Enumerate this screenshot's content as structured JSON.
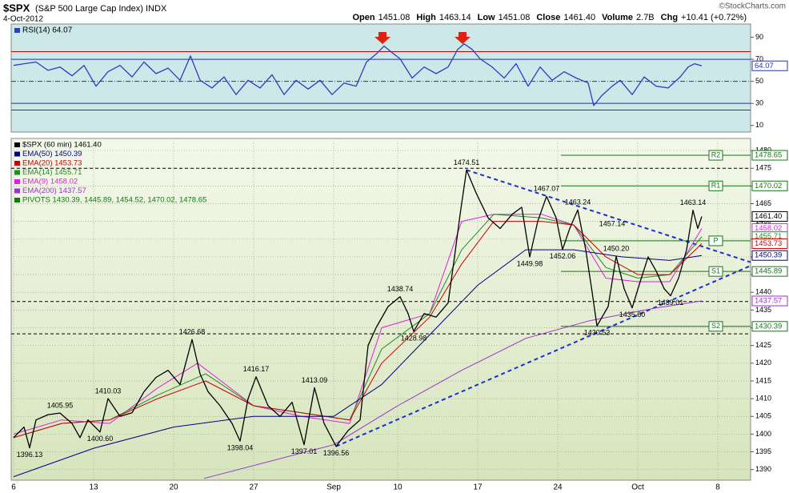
{
  "header": {
    "symbol": "$SPX",
    "name": "(S&P 500 Large Cap Index) INDX",
    "date": "4-Oct-2012",
    "credit": "©StockCharts.com",
    "quote": [
      {
        "label": "Open",
        "value": "1451.08"
      },
      {
        "label": "High",
        "value": "1463.14"
      },
      {
        "label": "Low",
        "value": "1451.08"
      },
      {
        "label": "Close",
        "value": "1461.40"
      },
      {
        "label": "Volume",
        "value": "2.7B"
      },
      {
        "label": "Chg",
        "value": "+10.41 (+0.72%)"
      }
    ]
  },
  "chart_data": [
    {
      "type": "line",
      "title": "RSI(14) 64.07",
      "xlim": [
        -0.15,
        46.05
      ],
      "ylim": [
        4,
        102
      ],
      "yticks": [
        10,
        30,
        50,
        70,
        90
      ],
      "grid": false,
      "reference_lines": [
        {
          "value": 77,
          "color": "#cc0000"
        },
        {
          "value": 70,
          "color": "#2233aa"
        },
        {
          "value": 50,
          "color": "#2233aa",
          "dash": true
        },
        {
          "value": 30,
          "color": "#2233aa"
        },
        {
          "value": 24,
          "color": "#cc0000"
        }
      ],
      "flags": [
        {
          "value": 64.07,
          "label": "64.07",
          "color": "#2233aa"
        }
      ],
      "series": [
        {
          "name": "RSI(14)",
          "color": "#2a3fbf",
          "x": [
            0,
            0.65,
            1.4,
            2.15,
            2.9,
            3.65,
            4.4,
            5.15,
            5.9,
            6.65,
            7.4,
            8.15,
            8.9,
            9.65,
            10.4,
            11.05,
            11.65,
            12.4,
            13.15,
            13.9,
            14.65,
            15.4,
            16.15,
            16.9,
            17.65,
            18.4,
            19.15,
            19.9,
            20.65,
            21.4,
            22.05,
            22.65,
            23.15,
            23.65,
            24.15,
            24.9,
            25.65,
            26.4,
            27.15,
            27.75,
            28.15,
            28.65,
            29.15,
            29.9,
            30.65,
            31.4,
            32.15,
            32.9,
            33.65,
            34.4,
            35.15,
            35.9,
            36.25,
            36.75,
            37.4,
            37.9,
            38.65,
            39.4,
            40.15,
            40.9,
            41.65,
            42.15,
            42.55,
            43
          ],
          "values": [
            64.5,
            66,
            67.5,
            60,
            63,
            55,
            64.5,
            45.6,
            58.7,
            64.5,
            54,
            67.5,
            57,
            62,
            51,
            73,
            51,
            44,
            54,
            38,
            51,
            44,
            56,
            38,
            51,
            43,
            51,
            38,
            48.5,
            45.6,
            67.5,
            74.7,
            82,
            76,
            70.4,
            53,
            63,
            57,
            63,
            79,
            84,
            79,
            70.4,
            63,
            53,
            66,
            45.6,
            63,
            51,
            58.7,
            53,
            48.5,
            28,
            37,
            45.6,
            51,
            38,
            54,
            45.6,
            44,
            54,
            63,
            66,
            64.07
          ]
        }
      ]
    },
    {
      "type": "line",
      "xlim": [
        -0.15,
        46.05
      ],
      "ylim": [
        1387,
        1483.4
      ],
      "xticks": [
        {
          "value": 0,
          "label": "6"
        },
        {
          "value": 5,
          "label": "13"
        },
        {
          "value": 10,
          "label": "20"
        },
        {
          "value": 15,
          "label": "27"
        },
        {
          "value": 20,
          "label": "Sep"
        },
        {
          "value": 24,
          "label": "10"
        },
        {
          "value": 29,
          "label": "17"
        },
        {
          "value": 34,
          "label": "24"
        },
        {
          "value": 39,
          "label": "Oct"
        },
        {
          "value": 44,
          "label": "8"
        }
      ],
      "yticks": [
        1390,
        1395,
        1400,
        1405,
        1410,
        1415,
        1420,
        1425,
        1430,
        1435,
        1440,
        1445,
        1450,
        1455,
        1460,
        1465,
        1470,
        1475,
        1480
      ],
      "grid": true,
      "series": [
        {
          "name": "$SPX (60 min) 1461.40",
          "color": "#000000",
          "x": [
            0,
            0.65,
            1,
            1.4,
            2.15,
            2.9,
            3.65,
            4.15,
            4.65,
            5.4,
            5.9,
            6.65,
            7.4,
            8.15,
            8.9,
            9.65,
            10.4,
            11.15,
            11.65,
            12.15,
            12.9,
            13.65,
            14.15,
            14.65,
            15.15,
            15.9,
            16.65,
            17.4,
            18.15,
            18.8,
            19.4,
            20.15,
            20.9,
            21.65,
            22.15,
            22.65,
            23.4,
            24.15,
            24.65,
            25,
            25.65,
            26.4,
            27.15,
            27.55,
            27.9,
            28.3,
            28.9,
            29.65,
            30.4,
            31.15,
            31.75,
            32.25,
            32.75,
            33.3,
            33.9,
            34.3,
            34.75,
            35.25,
            35.75,
            36.15,
            36.45,
            37.15,
            37.65,
            38.15,
            38.65,
            39.15,
            39.65,
            40.15,
            40.65,
            41.05,
            41.55,
            42.05,
            42.45,
            42.75,
            43
          ],
          "values": [
            1399,
            1402,
            1396.13,
            1404,
            1405.5,
            1405.95,
            1403,
            1399,
            1404,
            1400.6,
            1410.03,
            1405,
            1406,
            1412,
            1416,
            1418,
            1414,
            1426.68,
            1417,
            1412,
            1408,
            1403,
            1398.04,
            1410,
            1416.17,
            1408,
            1405,
            1409,
            1397.01,
            1413.09,
            1403,
            1396.56,
            1401,
            1404,
            1425,
            1430,
            1436,
            1438.74,
            1434,
            1428.98,
            1434,
            1433,
            1437,
            1450,
            1462,
            1474.51,
            1468,
            1461,
            1458,
            1462,
            1464,
            1449.98,
            1460,
            1467.07,
            1461,
            1452.06,
            1458,
            1463.24,
            1452,
            1440,
            1430.53,
            1436,
            1450.2,
            1441,
            1435.6,
            1443,
            1450,
            1446,
            1441,
            1439.01,
            1444,
            1452,
            1463.14,
            1458,
            1461.4
          ]
        },
        {
          "name": "EMA(50) 1450.39",
          "color": "#000080",
          "x": [
            0,
            5,
            10,
            15,
            20,
            23,
            26,
            29,
            32,
            35,
            38,
            41,
            43
          ],
          "values": [
            1388,
            1396,
            1402,
            1405,
            1405,
            1414,
            1428,
            1442,
            1452,
            1452,
            1450,
            1449,
            1450.39
          ]
        },
        {
          "name": "EMA(20) 1453.73",
          "color": "#cc0000",
          "x": [
            0,
            3,
            6,
            9,
            12,
            15,
            18,
            21,
            23,
            26,
            28,
            30,
            33,
            35,
            37,
            39,
            41,
            43
          ],
          "values": [
            1399,
            1403,
            1404,
            1410,
            1415,
            1408,
            1406,
            1404,
            1420,
            1433,
            1448,
            1460,
            1460,
            1459,
            1450,
            1445,
            1445,
            1453.73
          ]
        },
        {
          "name": "EMA(14) 1455.71",
          "color": "#228b22",
          "x": [
            0,
            3,
            6,
            9,
            12,
            15,
            18,
            21,
            23,
            26,
            28,
            30,
            33,
            35,
            37,
            39,
            41,
            43
          ],
          "values": [
            1399,
            1403,
            1404,
            1411,
            1417,
            1408,
            1406,
            1404,
            1424,
            1434,
            1452,
            1462,
            1461,
            1459,
            1447,
            1444,
            1445,
            1455.71
          ]
        },
        {
          "name": "EMA(9) 1458.02",
          "color": "#e020e0",
          "x": [
            0,
            3,
            6,
            9,
            11.5,
            15,
            18,
            21,
            23,
            26,
            28,
            30,
            33,
            35,
            37,
            39,
            41,
            43
          ],
          "values": [
            1400,
            1404,
            1403,
            1413,
            1420,
            1408,
            1405,
            1403,
            1430,
            1434,
            1460,
            1462,
            1462,
            1459,
            1444,
            1443,
            1443,
            1458.02
          ]
        },
        {
          "name": "EMA(200) 1437.57",
          "color": "#9933cc",
          "x": [
            11.9,
            20,
            24,
            28,
            32,
            36,
            40,
            43
          ],
          "values": [
            1387.5,
            1397,
            1408,
            1418,
            1427,
            1432,
            1435.5,
            1437.57
          ]
        }
      ],
      "pivots_legend": "PIVOTS 1430.39, 1445.89, 1454.52, 1470.02, 1478.65",
      "pivots_color": "#117711",
      "pivots": [
        {
          "name": "R2",
          "value": 1478.65
        },
        {
          "name": "R1",
          "value": 1470.02
        },
        {
          "name": "P",
          "value": 1454.52
        },
        {
          "name": "S1",
          "value": 1445.89
        },
        {
          "name": "S2",
          "value": 1430.39
        }
      ],
      "pivot_range": [
        34.2,
        46.05
      ],
      "horizontal_lines": [
        1475,
        1437.4,
        1428.3
      ],
      "trendlines": [
        {
          "x": [
            20.15,
            46.05
          ],
          "values": [
            1396.56,
            1447.5
          ]
        },
        {
          "x": [
            28.3,
            46.05
          ],
          "values": [
            1474.51,
            1448.5
          ]
        }
      ],
      "trendline_color": "#1a2fd0",
      "annotations": [
        {
          "x": 1,
          "value": 1396.13,
          "side": "below"
        },
        {
          "x": 2.9,
          "value": 1405.95,
          "side": "above"
        },
        {
          "x": 5.4,
          "value": 1400.6,
          "label": "1400.60",
          "side": "below"
        },
        {
          "x": 5.9,
          "value": 1410.03,
          "side": "above"
        },
        {
          "x": 11.15,
          "value": 1426.68,
          "side": "above"
        },
        {
          "x": 14.15,
          "value": 1398.04,
          "side": "below"
        },
        {
          "x": 15.15,
          "value": 1416.17,
          "side": "above"
        },
        {
          "x": 18.15,
          "value": 1397.01,
          "side": "below"
        },
        {
          "x": 18.8,
          "value": 1413.09,
          "side": "above"
        },
        {
          "x": 20.15,
          "value": 1396.56,
          "side": "below"
        },
        {
          "x": 24.15,
          "value": 1438.74,
          "side": "above"
        },
        {
          "x": 25,
          "value": 1428.98,
          "side": "below"
        },
        {
          "x": 28.3,
          "value": 1474.51,
          "side": "above"
        },
        {
          "x": 32.25,
          "value": 1449.98,
          "side": "below"
        },
        {
          "x": 33.3,
          "value": 1467.07,
          "side": "above"
        },
        {
          "x": 34.3,
          "value": 1452.06,
          "side": "below"
        },
        {
          "x": 35.25,
          "value": 1463.24,
          "side": "above"
        },
        {
          "x": 37.4,
          "value": 1457.14,
          "side": "above"
        },
        {
          "x": 37.65,
          "value": 1450.2,
          "label": "1450.20",
          "side": "above"
        },
        {
          "x": 36.45,
          "value": 1430.53,
          "side": "below"
        },
        {
          "x": 38.65,
          "value": 1435.6,
          "label": "1435.60",
          "side": "below"
        },
        {
          "x": 41.05,
          "value": 1439.01,
          "side": "below"
        },
        {
          "x": 42.45,
          "value": 1463.14,
          "side": "above"
        }
      ],
      "flags": [
        {
          "value": 1478.65,
          "label": "1478.65",
          "color": "#117711"
        },
        {
          "value": 1470.02,
          "label": "1470.02",
          "color": "#117711"
        },
        {
          "value": 1461.4,
          "label": "1461.40",
          "color": "#000000"
        },
        {
          "value": 1458.02,
          "label": "1458.02",
          "color": "#e020e0"
        },
        {
          "value": 1455.71,
          "label": "1455.71",
          "color": "#228b22"
        },
        {
          "value": 1453.73,
          "label": "1453.73",
          "color": "#cc0000"
        },
        {
          "value": 1450.39,
          "label": "1450.39",
          "color": "#000080"
        },
        {
          "value": 1445.89,
          "label": "1445.89",
          "color": "#117711"
        },
        {
          "value": 1437.57,
          "label": "1437.57",
          "color": "#9933cc"
        },
        {
          "value": 1430.39,
          "label": "1430.39",
          "color": "#117711"
        }
      ]
    }
  ]
}
